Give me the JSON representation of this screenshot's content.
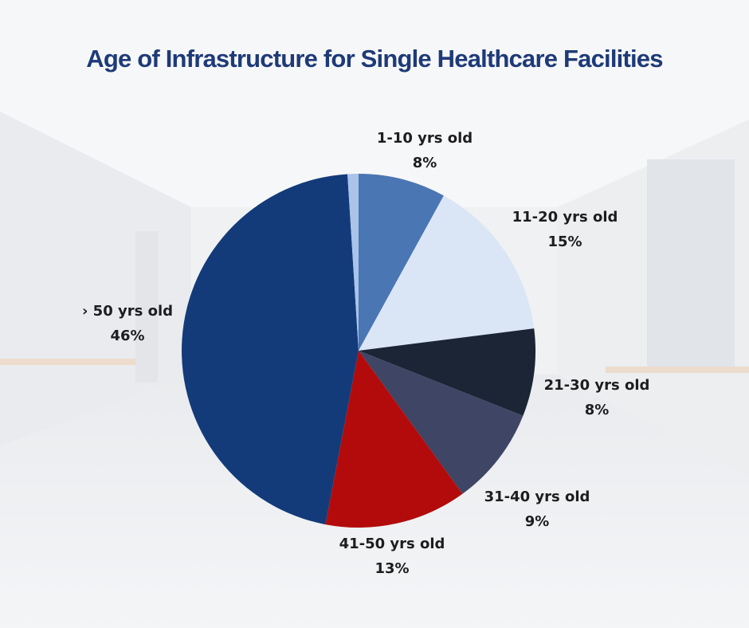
{
  "chart_data": {
    "type": "pie",
    "title": "Age of Infrastructure for Single Healthcare Facilities",
    "legend": "none",
    "slices": [
      {
        "label": "1-10 yrs old",
        "pct_text": "8%",
        "value": 8,
        "color": "#4a76b3"
      },
      {
        "label": "11-20 yrs old",
        "pct_text": "15%",
        "value": 15,
        "color": "#dae6f6"
      },
      {
        "label": "21-30 yrs old",
        "pct_text": "8%",
        "value": 8,
        "color": "#1b2535"
      },
      {
        "label": "31-40 yrs old",
        "pct_text": "9%",
        "value": 9,
        "color": "#3f4564"
      },
      {
        "label": "41-50 yrs old",
        "pct_text": "13%",
        "value": 13,
        "color": "#b30b0b"
      },
      {
        "label": "› 50 yrs old",
        "pct_text": "46%",
        "value": 46,
        "color": "#133b7a"
      },
      {
        "label": "",
        "pct_text": "",
        "value": 1,
        "color": "#a9c3e9"
      }
    ]
  },
  "colors": {
    "title": "#1e3a78",
    "label_text": "#1d1d1f"
  }
}
